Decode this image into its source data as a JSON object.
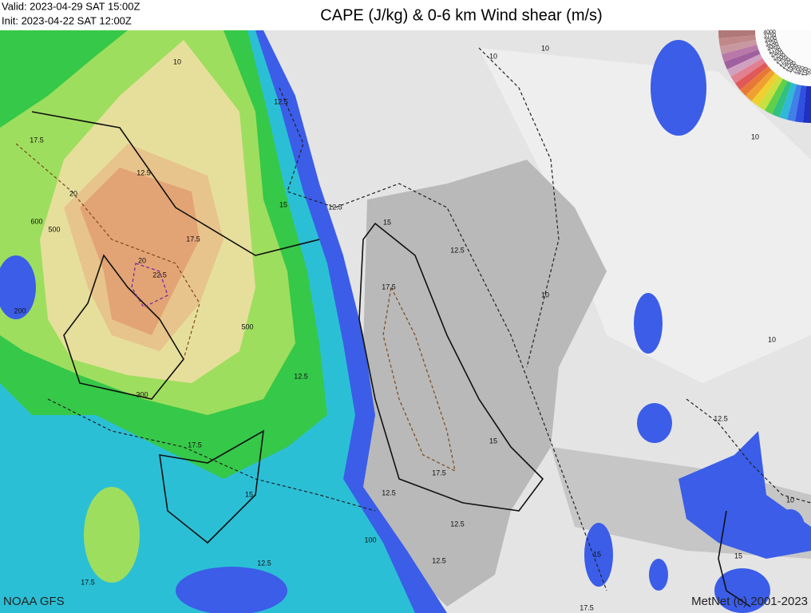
{
  "header": {
    "valid": "Valid: 2023-04-29 SAT  15:00Z",
    "init": "Init:   2023-04-22 SAT  12:00Z",
    "title": "CAPE (J/kg) & 0-6 km Wind shear (m/s)"
  },
  "legend": {
    "levels": [
      "4000",
      "3750",
      "3500",
      "3250",
      "3000",
      "2750",
      "2500",
      "2250",
      "2000",
      "1750",
      "1500",
      "1250",
      "1000",
      "750",
      "500",
      "250",
      "100",
      "50"
    ]
  },
  "contour_labels": [
    "10",
    "10",
    "10",
    "12.5",
    "12.5",
    "12.5",
    "12.5",
    "15",
    "15",
    "17.5",
    "17.5",
    "17.5",
    "20",
    "20",
    "22.5",
    "500",
    "600",
    "500",
    "300",
    "200",
    "10",
    "10",
    "12.5",
    "15",
    "17.5",
    "12.5",
    "15",
    "12.5",
    "12.5",
    "100",
    "12.5",
    "15",
    "15",
    "10",
    "10",
    "17.5",
    "12.5",
    "17.5",
    "17.5"
  ],
  "footer": {
    "source": "NOAA GFS",
    "copyright": "MetNet (c) 2001-2023"
  }
}
